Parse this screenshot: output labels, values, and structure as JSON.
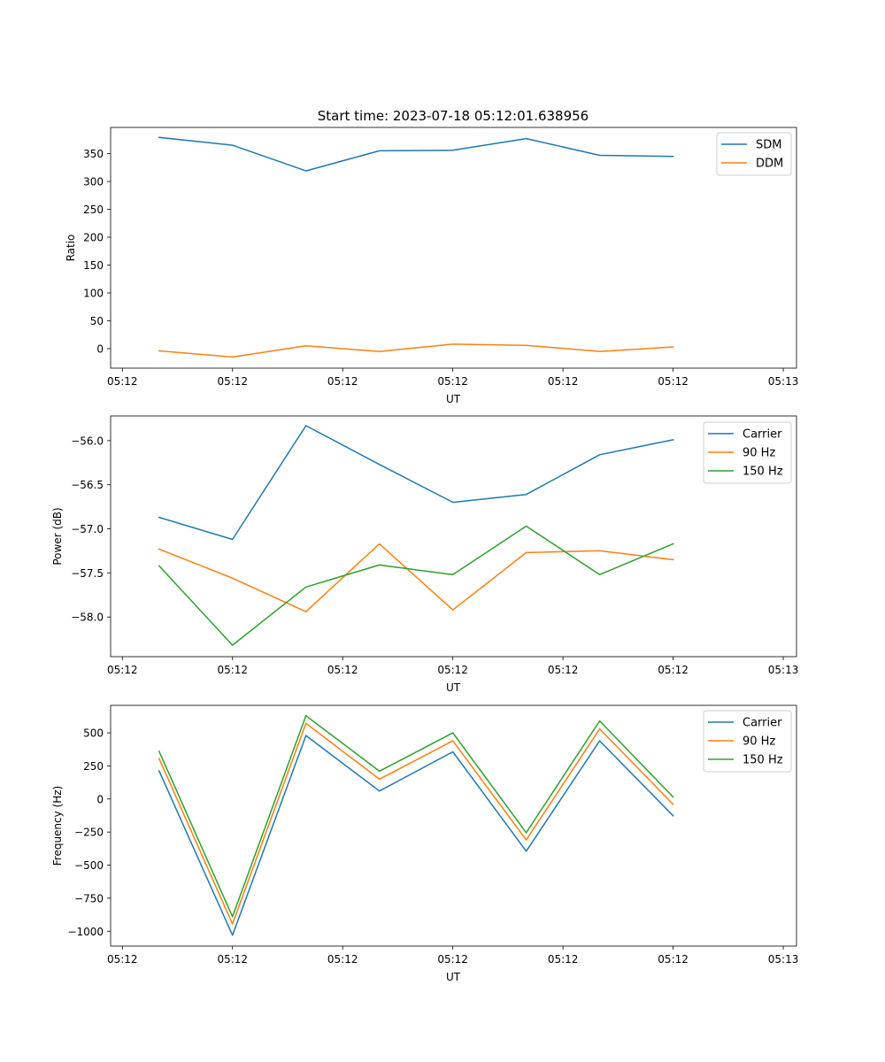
{
  "colors": {
    "blue": "#1f77b4",
    "orange": "#ff7f0e",
    "green": "#2ca02c",
    "axis": "#000000",
    "background": "#ffffff"
  },
  "chart_data": [
    {
      "type": "line",
      "title": "Start time: 2023-07-18 05:12:01.638956",
      "xlabel": "UT",
      "ylabel": "Ratio",
      "xlim": [
        -0.66,
        8.68
      ],
      "ylim": [
        -35,
        397
      ],
      "x": [
        0,
        1,
        2,
        3,
        4,
        5,
        6,
        7
      ],
      "x_ticks": [
        -0.5,
        1,
        2.5,
        4,
        5.5,
        7,
        8.5
      ],
      "x_tick_labels": [
        "05:12",
        "05:12",
        "05:12",
        "05:12",
        "05:12",
        "05:12",
        "05:13"
      ],
      "y_ticks": [
        0,
        50,
        100,
        150,
        200,
        250,
        300,
        350
      ],
      "y_tick_labels": [
        "0",
        "50",
        "100",
        "150",
        "200",
        "250",
        "300",
        "350"
      ],
      "legend": [
        "SDM",
        "DDM"
      ],
      "series": [
        {
          "name": "SDM",
          "color": "#1f77b4",
          "values": [
            379,
            365,
            319,
            355,
            356,
            377,
            347,
            345
          ]
        },
        {
          "name": "DDM",
          "color": "#ff7f0e",
          "values": [
            -4,
            -15,
            5,
            -5,
            8,
            6,
            -5,
            3
          ]
        }
      ]
    },
    {
      "type": "line",
      "title": "",
      "xlabel": "UT",
      "ylabel": "Power (dB)",
      "xlim": [
        -0.66,
        8.68
      ],
      "ylim": [
        -58.45,
        -55.72
      ],
      "x": [
        0,
        1,
        2,
        3,
        4,
        5,
        6,
        7
      ],
      "x_ticks": [
        -0.5,
        1,
        2.5,
        4,
        5.5,
        7,
        8.5
      ],
      "x_tick_labels": [
        "05:12",
        "05:12",
        "05:12",
        "05:12",
        "05:12",
        "05:12",
        "05:13"
      ],
      "y_ticks": [
        -58.0,
        -57.5,
        -57.0,
        -56.5,
        -56.0
      ],
      "y_tick_labels": [
        "−58.0",
        "−57.5",
        "−57.0",
        "−56.5",
        "−56.0"
      ],
      "legend": [
        "Carrier",
        "90 Hz",
        "150 Hz"
      ],
      "series": [
        {
          "name": "Carrier",
          "color": "#1f77b4",
          "values": [
            -56.87,
            -57.12,
            -55.83,
            -56.27,
            -56.7,
            -56.61,
            -56.16,
            -55.99
          ]
        },
        {
          "name": "90 Hz",
          "color": "#ff7f0e",
          "values": [
            -57.23,
            -57.56,
            -57.94,
            -57.17,
            -57.92,
            -57.27,
            -57.25,
            -57.35
          ]
        },
        {
          "name": "150 Hz",
          "color": "#2ca02c",
          "values": [
            -57.42,
            -58.32,
            -57.66,
            -57.41,
            -57.52,
            -56.97,
            -57.52,
            -57.17
          ]
        }
      ]
    },
    {
      "type": "line",
      "title": "",
      "xlabel": "UT",
      "ylabel": "Frequency (Hz)",
      "xlim": [
        -0.66,
        8.68
      ],
      "ylim": [
        -1112,
        708
      ],
      "x": [
        0,
        1,
        2,
        3,
        4,
        5,
        6,
        7
      ],
      "x_ticks": [
        -0.5,
        1,
        2.5,
        4,
        5.5,
        7,
        8.5
      ],
      "x_tick_labels": [
        "05:12",
        "05:12",
        "05:12",
        "05:12",
        "05:12",
        "05:12",
        "05:13"
      ],
      "y_ticks": [
        -1000,
        -750,
        -500,
        -250,
        0,
        250,
        500
      ],
      "y_tick_labels": [
        "−1000",
        "−750",
        "−500",
        "−250",
        "0",
        "250",
        "500"
      ],
      "legend": [
        "Carrier",
        "90 Hz",
        "150 Hz"
      ],
      "series": [
        {
          "name": "Carrier",
          "color": "#1f77b4",
          "values": [
            212,
            -1030,
            480,
            60,
            357,
            -395,
            440,
            -127
          ]
        },
        {
          "name": "90 Hz",
          "color": "#ff7f0e",
          "values": [
            305,
            -945,
            572,
            150,
            440,
            -310,
            530,
            -40
          ]
        },
        {
          "name": "150 Hz",
          "color": "#2ca02c",
          "values": [
            360,
            -890,
            630,
            210,
            500,
            -255,
            590,
            15
          ]
        }
      ]
    }
  ]
}
